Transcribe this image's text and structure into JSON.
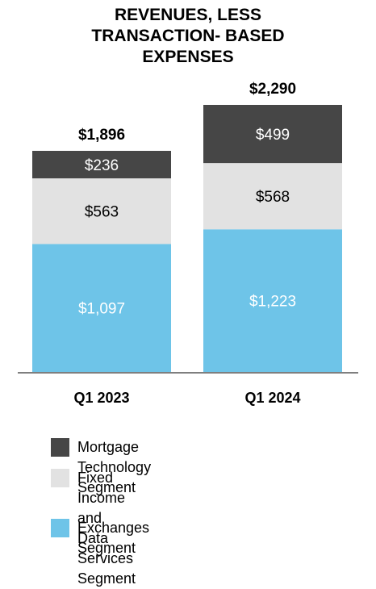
{
  "chart_data": {
    "type": "bar",
    "stacked": true,
    "title_lines": [
      "REVENUES, LESS",
      "TRANSACTION- BASED",
      "EXPENSES"
    ],
    "categories": [
      "Q1 2023",
      "Q1 2024"
    ],
    "totals": [
      1896,
      2290
    ],
    "total_labels": [
      "$1,896",
      "$2,290"
    ],
    "series": [
      {
        "name": "Exchanges Segment",
        "values": [
          1097,
          1223
        ],
        "labels": [
          "$1,097",
          "$1,223"
        ],
        "color": "#6ec4e8",
        "text_color": "#ffffff"
      },
      {
        "name": "Fixed Income and Data Services\n Segment",
        "values": [
          563,
          568
        ],
        "labels": [
          "$563",
          "$568"
        ],
        "color": "#e2e2e2",
        "text_color": "#000000"
      },
      {
        "name": "Mortgage Technology Segment",
        "values": [
          236,
          499
        ],
        "labels": [
          "$236",
          "$499"
        ],
        "color": "#464646",
        "text_color": "#ffffff"
      }
    ],
    "legend_order": [
      "Mortgage Technology Segment",
      "Fixed Income and Data Services\n Segment",
      "Exchanges Segment"
    ],
    "axis_color": "#7f7f7f",
    "ylim": [
      0,
      2290
    ],
    "grid": false,
    "legend_position": "bottom"
  }
}
